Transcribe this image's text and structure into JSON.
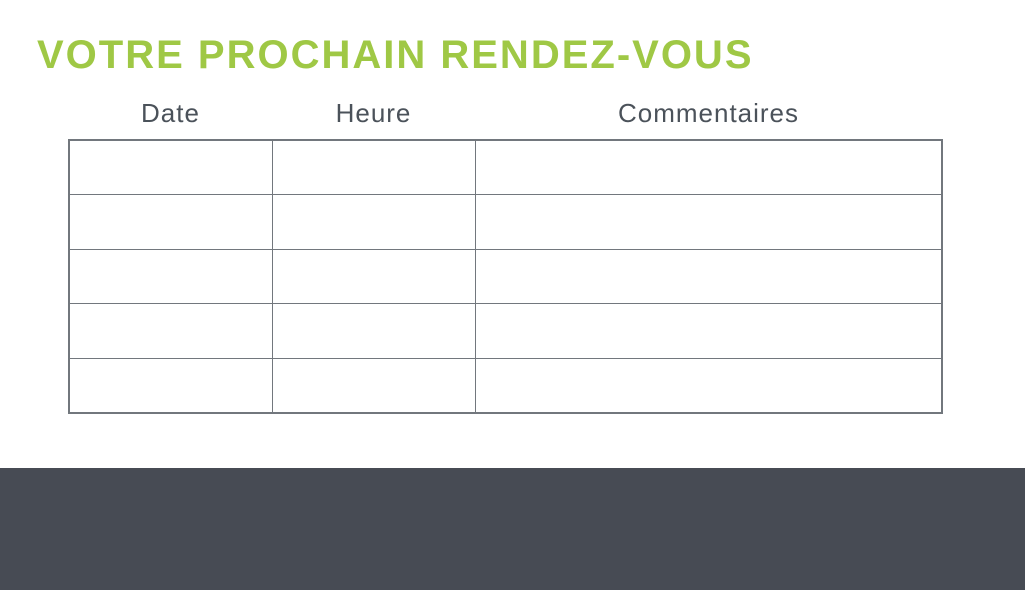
{
  "page": {
    "title": "VOTRE PROCHAIN RENDEZ-VOUS"
  },
  "table": {
    "columns": [
      {
        "label": "Date"
      },
      {
        "label": "Heure"
      },
      {
        "label": "Commentaires"
      }
    ],
    "rows": [
      [
        "",
        "",
        ""
      ],
      [
        "",
        "",
        ""
      ],
      [
        "",
        "",
        ""
      ],
      [
        "",
        "",
        ""
      ],
      [
        "",
        "",
        ""
      ]
    ]
  },
  "colors": {
    "accent_green": "#9fc845",
    "heading_gray": "#4b525a",
    "table_border": "#72777d",
    "footer_dark": "#474b54"
  }
}
